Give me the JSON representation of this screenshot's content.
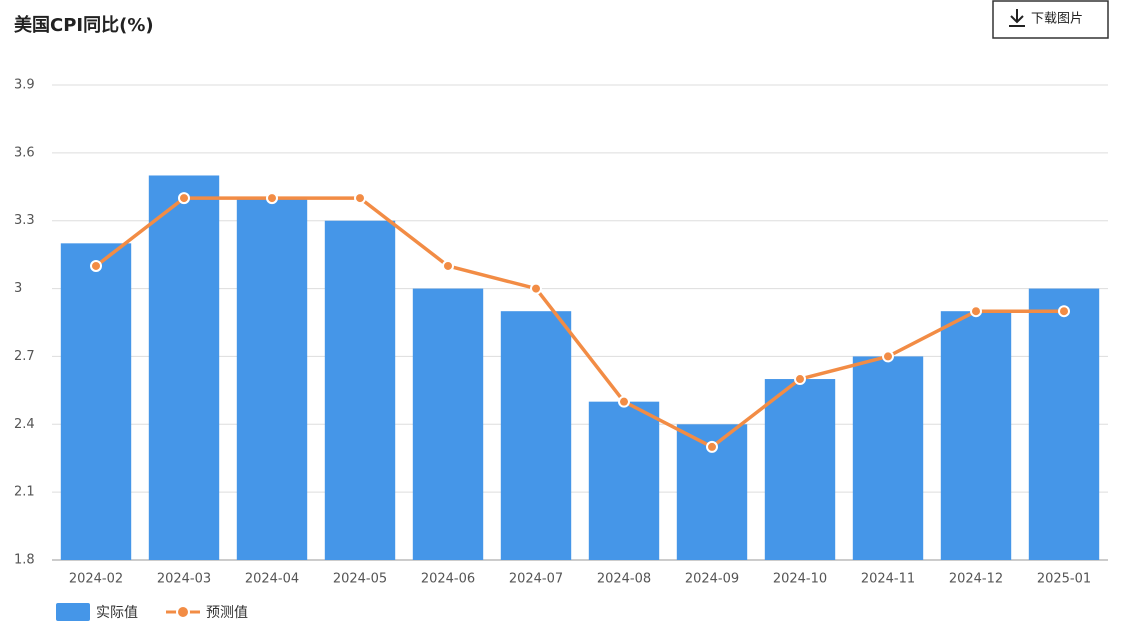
{
  "title": "美国CPI同比(%)",
  "download_button": "下载图片",
  "chart_data": {
    "type": "bar",
    "categories": [
      "2024-02",
      "2024-03",
      "2024-04",
      "2024-05",
      "2024-06",
      "2024-07",
      "2024-08",
      "2024-09",
      "2024-10",
      "2024-11",
      "2024-12",
      "2025-01"
    ],
    "series": [
      {
        "name": "实际值",
        "type": "bar",
        "color": "#4596e8",
        "values": [
          3.2,
          3.5,
          3.4,
          3.3,
          3.0,
          2.9,
          2.5,
          2.4,
          2.6,
          2.7,
          2.9,
          3.0
        ]
      },
      {
        "name": "预测值",
        "type": "line",
        "color": "#f28c45",
        "values": [
          3.1,
          3.4,
          3.4,
          3.4,
          3.1,
          3.0,
          2.5,
          2.3,
          2.6,
          2.7,
          2.9,
          2.9
        ]
      }
    ],
    "ylim": [
      1.8,
      3.9
    ],
    "yticks": [
      1.8,
      2.1,
      2.4,
      2.7,
      3,
      3.3,
      3.6,
      3.9
    ],
    "grid": true,
    "legend": "bottom-left"
  }
}
